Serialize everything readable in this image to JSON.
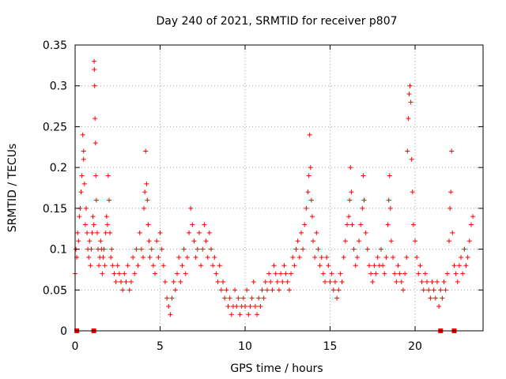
{
  "chart_data": {
    "type": "scatter",
    "title": "Day 240 of 2021, SRMTID for receiver p807",
    "xlabel": "GPS time / hours",
    "ylabel": "SRMTID / TECUs",
    "xlim": [
      0,
      24
    ],
    "ylim": [
      0,
      0.35
    ],
    "x_ticks": [
      0,
      5,
      10,
      15,
      20
    ],
    "y_ticks": [
      0,
      0.05,
      0.1,
      0.15,
      0.2,
      0.25,
      0.3,
      0.35
    ],
    "x_tick_labels": [
      "0",
      "5",
      "10",
      "15",
      "20"
    ],
    "y_tick_labels": [
      "0",
      "0.05",
      "0.1",
      "0.15",
      "0.2",
      "0.25",
      "0.3",
      "0.35"
    ],
    "grid": true,
    "marker": "plus",
    "color": "#ff0000",
    "baseline_markers_x": [
      0.1,
      1.1,
      21.5,
      22.3
    ],
    "series": [
      {
        "name": "SRMTID",
        "points": [
          [
            0.0,
            0.07
          ],
          [
            0.05,
            0.1
          ],
          [
            0.1,
            0.09
          ],
          [
            0.15,
            0.12
          ],
          [
            0.2,
            0.11
          ],
          [
            0.25,
            0.14
          ],
          [
            0.3,
            0.15
          ],
          [
            0.35,
            0.17
          ],
          [
            0.4,
            0.19
          ],
          [
            0.45,
            0.24
          ],
          [
            0.5,
            0.22
          ],
          [
            0.5,
            0.21
          ],
          [
            0.55,
            0.18
          ],
          [
            0.6,
            0.13
          ],
          [
            0.65,
            0.15
          ],
          [
            0.7,
            0.12
          ],
          [
            0.75,
            0.1
          ],
          [
            0.8,
            0.09
          ],
          [
            0.85,
            0.11
          ],
          [
            0.9,
            0.08
          ],
          [
            0.95,
            0.1
          ],
          [
            1.0,
            0.12
          ],
          [
            1.05,
            0.14
          ],
          [
            1.1,
            0.13
          ],
          [
            1.12,
            0.33
          ],
          [
            1.13,
            0.32
          ],
          [
            1.15,
            0.3
          ],
          [
            1.17,
            0.26
          ],
          [
            1.2,
            0.23
          ],
          [
            1.22,
            0.19
          ],
          [
            1.25,
            0.16
          ],
          [
            1.3,
            0.12
          ],
          [
            1.35,
            0.1
          ],
          [
            1.4,
            0.08
          ],
          [
            1.45,
            0.09
          ],
          [
            1.5,
            0.11
          ],
          [
            1.55,
            0.1
          ],
          [
            1.6,
            0.07
          ],
          [
            1.65,
            0.09
          ],
          [
            1.7,
            0.1
          ],
          [
            1.75,
            0.08
          ],
          [
            1.8,
            0.12
          ],
          [
            1.85,
            0.14
          ],
          [
            1.9,
            0.13
          ],
          [
            1.95,
            0.19
          ],
          [
            2.0,
            0.16
          ],
          [
            2.05,
            0.12
          ],
          [
            2.1,
            0.09
          ],
          [
            2.15,
            0.1
          ],
          [
            2.2,
            0.08
          ],
          [
            2.3,
            0.07
          ],
          [
            2.4,
            0.06
          ],
          [
            2.5,
            0.08
          ],
          [
            2.6,
            0.07
          ],
          [
            2.7,
            0.06
          ],
          [
            2.8,
            0.05
          ],
          [
            2.9,
            0.07
          ],
          [
            3.0,
            0.06
          ],
          [
            3.1,
            0.08
          ],
          [
            3.2,
            0.05
          ],
          [
            3.3,
            0.06
          ],
          [
            3.4,
            0.09
          ],
          [
            3.5,
            0.07
          ],
          [
            3.6,
            0.1
          ],
          [
            3.7,
            0.08
          ],
          [
            3.8,
            0.12
          ],
          [
            3.9,
            0.1
          ],
          [
            4.0,
            0.09
          ],
          [
            4.05,
            0.15
          ],
          [
            4.1,
            0.17
          ],
          [
            4.15,
            0.22
          ],
          [
            4.2,
            0.18
          ],
          [
            4.25,
            0.16
          ],
          [
            4.3,
            0.13
          ],
          [
            4.35,
            0.11
          ],
          [
            4.4,
            0.09
          ],
          [
            4.5,
            0.1
          ],
          [
            4.6,
            0.08
          ],
          [
            4.7,
            0.07
          ],
          [
            4.8,
            0.11
          ],
          [
            4.9,
            0.09
          ],
          [
            5.0,
            0.12
          ],
          [
            5.1,
            0.1
          ],
          [
            5.2,
            0.08
          ],
          [
            5.3,
            0.06
          ],
          [
            5.4,
            0.04
          ],
          [
            5.5,
            0.03
          ],
          [
            5.6,
            0.02
          ],
          [
            5.7,
            0.04
          ],
          [
            5.8,
            0.06
          ],
          [
            5.9,
            0.05
          ],
          [
            6.0,
            0.07
          ],
          [
            6.1,
            0.09
          ],
          [
            6.2,
            0.06
          ],
          [
            6.3,
            0.08
          ],
          [
            6.4,
            0.1
          ],
          [
            6.5,
            0.07
          ],
          [
            6.6,
            0.09
          ],
          [
            6.7,
            0.12
          ],
          [
            6.8,
            0.15
          ],
          [
            6.9,
            0.13
          ],
          [
            7.0,
            0.11
          ],
          [
            7.1,
            0.09
          ],
          [
            7.2,
            0.1
          ],
          [
            7.3,
            0.12
          ],
          [
            7.4,
            0.08
          ],
          [
            7.5,
            0.1
          ],
          [
            7.6,
            0.13
          ],
          [
            7.7,
            0.11
          ],
          [
            7.8,
            0.09
          ],
          [
            7.9,
            0.12
          ],
          [
            8.0,
            0.1
          ],
          [
            8.1,
            0.08
          ],
          [
            8.2,
            0.09
          ],
          [
            8.3,
            0.07
          ],
          [
            8.4,
            0.06
          ],
          [
            8.5,
            0.08
          ],
          [
            8.6,
            0.05
          ],
          [
            8.7,
            0.06
          ],
          [
            8.8,
            0.04
          ],
          [
            8.9,
            0.05
          ],
          [
            9.0,
            0.03
          ],
          [
            9.1,
            0.04
          ],
          [
            9.2,
            0.02
          ],
          [
            9.3,
            0.03
          ],
          [
            9.4,
            0.05
          ],
          [
            9.5,
            0.03
          ],
          [
            9.6,
            0.04
          ],
          [
            9.7,
            0.02
          ],
          [
            9.8,
            0.03
          ],
          [
            9.9,
            0.04
          ],
          [
            10.0,
            0.03
          ],
          [
            10.1,
            0.05
          ],
          [
            10.2,
            0.02
          ],
          [
            10.3,
            0.03
          ],
          [
            10.4,
            0.04
          ],
          [
            10.5,
            0.06
          ],
          [
            10.6,
            0.03
          ],
          [
            10.7,
            0.02
          ],
          [
            10.8,
            0.04
          ],
          [
            10.9,
            0.03
          ],
          [
            11.0,
            0.05
          ],
          [
            11.1,
            0.04
          ],
          [
            11.2,
            0.06
          ],
          [
            11.3,
            0.05
          ],
          [
            11.4,
            0.07
          ],
          [
            11.5,
            0.06
          ],
          [
            11.6,
            0.05
          ],
          [
            11.7,
            0.08
          ],
          [
            11.8,
            0.07
          ],
          [
            11.9,
            0.06
          ],
          [
            12.0,
            0.05
          ],
          [
            12.1,
            0.07
          ],
          [
            12.2,
            0.06
          ],
          [
            12.3,
            0.08
          ],
          [
            12.4,
            0.07
          ],
          [
            12.5,
            0.06
          ],
          [
            12.6,
            0.05
          ],
          [
            12.7,
            0.07
          ],
          [
            12.8,
            0.09
          ],
          [
            12.9,
            0.08
          ],
          [
            13.0,
            0.1
          ],
          [
            13.1,
            0.11
          ],
          [
            13.2,
            0.09
          ],
          [
            13.3,
            0.12
          ],
          [
            13.4,
            0.1
          ],
          [
            13.5,
            0.13
          ],
          [
            13.6,
            0.15
          ],
          [
            13.7,
            0.17
          ],
          [
            13.75,
            0.19
          ],
          [
            13.8,
            0.24
          ],
          [
            13.85,
            0.2
          ],
          [
            13.9,
            0.16
          ],
          [
            13.95,
            0.14
          ],
          [
            14.0,
            0.11
          ],
          [
            14.1,
            0.09
          ],
          [
            14.2,
            0.12
          ],
          [
            14.3,
            0.1
          ],
          [
            14.4,
            0.08
          ],
          [
            14.5,
            0.09
          ],
          [
            14.6,
            0.07
          ],
          [
            14.7,
            0.06
          ],
          [
            14.8,
            0.09
          ],
          [
            14.9,
            0.08
          ],
          [
            15.0,
            0.06
          ],
          [
            15.1,
            0.07
          ],
          [
            15.2,
            0.05
          ],
          [
            15.3,
            0.06
          ],
          [
            15.4,
            0.04
          ],
          [
            15.5,
            0.05
          ],
          [
            15.6,
            0.07
          ],
          [
            15.7,
            0.06
          ],
          [
            15.8,
            0.09
          ],
          [
            15.9,
            0.11
          ],
          [
            16.0,
            0.13
          ],
          [
            16.1,
            0.14
          ],
          [
            16.15,
            0.16
          ],
          [
            16.2,
            0.2
          ],
          [
            16.25,
            0.17
          ],
          [
            16.3,
            0.13
          ],
          [
            16.4,
            0.1
          ],
          [
            16.5,
            0.08
          ],
          [
            16.6,
            0.09
          ],
          [
            16.7,
            0.11
          ],
          [
            16.8,
            0.13
          ],
          [
            16.9,
            0.15
          ],
          [
            16.95,
            0.19
          ],
          [
            17.0,
            0.16
          ],
          [
            17.1,
            0.12
          ],
          [
            17.2,
            0.1
          ],
          [
            17.3,
            0.08
          ],
          [
            17.4,
            0.07
          ],
          [
            17.5,
            0.06
          ],
          [
            17.6,
            0.08
          ],
          [
            17.7,
            0.07
          ],
          [
            17.8,
            0.09
          ],
          [
            17.9,
            0.08
          ],
          [
            18.0,
            0.1
          ],
          [
            18.1,
            0.08
          ],
          [
            18.2,
            0.07
          ],
          [
            18.3,
            0.09
          ],
          [
            18.4,
            0.13
          ],
          [
            18.45,
            0.16
          ],
          [
            18.5,
            0.19
          ],
          [
            18.55,
            0.15
          ],
          [
            18.6,
            0.11
          ],
          [
            18.7,
            0.09
          ],
          [
            18.8,
            0.07
          ],
          [
            18.9,
            0.06
          ],
          [
            19.0,
            0.08
          ],
          [
            19.1,
            0.07
          ],
          [
            19.2,
            0.06
          ],
          [
            19.3,
            0.05
          ],
          [
            19.4,
            0.07
          ],
          [
            19.5,
            0.09
          ],
          [
            19.55,
            0.22
          ],
          [
            19.6,
            0.26
          ],
          [
            19.65,
            0.29
          ],
          [
            19.7,
            0.3
          ],
          [
            19.75,
            0.28
          ],
          [
            19.8,
            0.21
          ],
          [
            19.85,
            0.17
          ],
          [
            19.9,
            0.13
          ],
          [
            20.0,
            0.11
          ],
          [
            20.1,
            0.09
          ],
          [
            20.2,
            0.07
          ],
          [
            20.3,
            0.08
          ],
          [
            20.4,
            0.06
          ],
          [
            20.5,
            0.05
          ],
          [
            20.6,
            0.07
          ],
          [
            20.7,
            0.06
          ],
          [
            20.8,
            0.05
          ],
          [
            20.9,
            0.04
          ],
          [
            21.0,
            0.06
          ],
          [
            21.1,
            0.05
          ],
          [
            21.2,
            0.04
          ],
          [
            21.3,
            0.06
          ],
          [
            21.4,
            0.03
          ],
          [
            21.5,
            0.05
          ],
          [
            21.6,
            0.04
          ],
          [
            21.7,
            0.06
          ],
          [
            21.8,
            0.05
          ],
          [
            21.9,
            0.07
          ],
          [
            22.0,
            0.11
          ],
          [
            22.05,
            0.15
          ],
          [
            22.1,
            0.17
          ],
          [
            22.15,
            0.22
          ],
          [
            22.2,
            0.12
          ],
          [
            22.3,
            0.08
          ],
          [
            22.4,
            0.07
          ],
          [
            22.5,
            0.06
          ],
          [
            22.6,
            0.08
          ],
          [
            22.7,
            0.09
          ],
          [
            22.8,
            0.07
          ],
          [
            22.9,
            0.1
          ],
          [
            23.0,
            0.08
          ],
          [
            23.1,
            0.09
          ],
          [
            23.2,
            0.11
          ],
          [
            23.3,
            0.13
          ],
          [
            23.4,
            0.14
          ]
        ]
      }
    ]
  }
}
